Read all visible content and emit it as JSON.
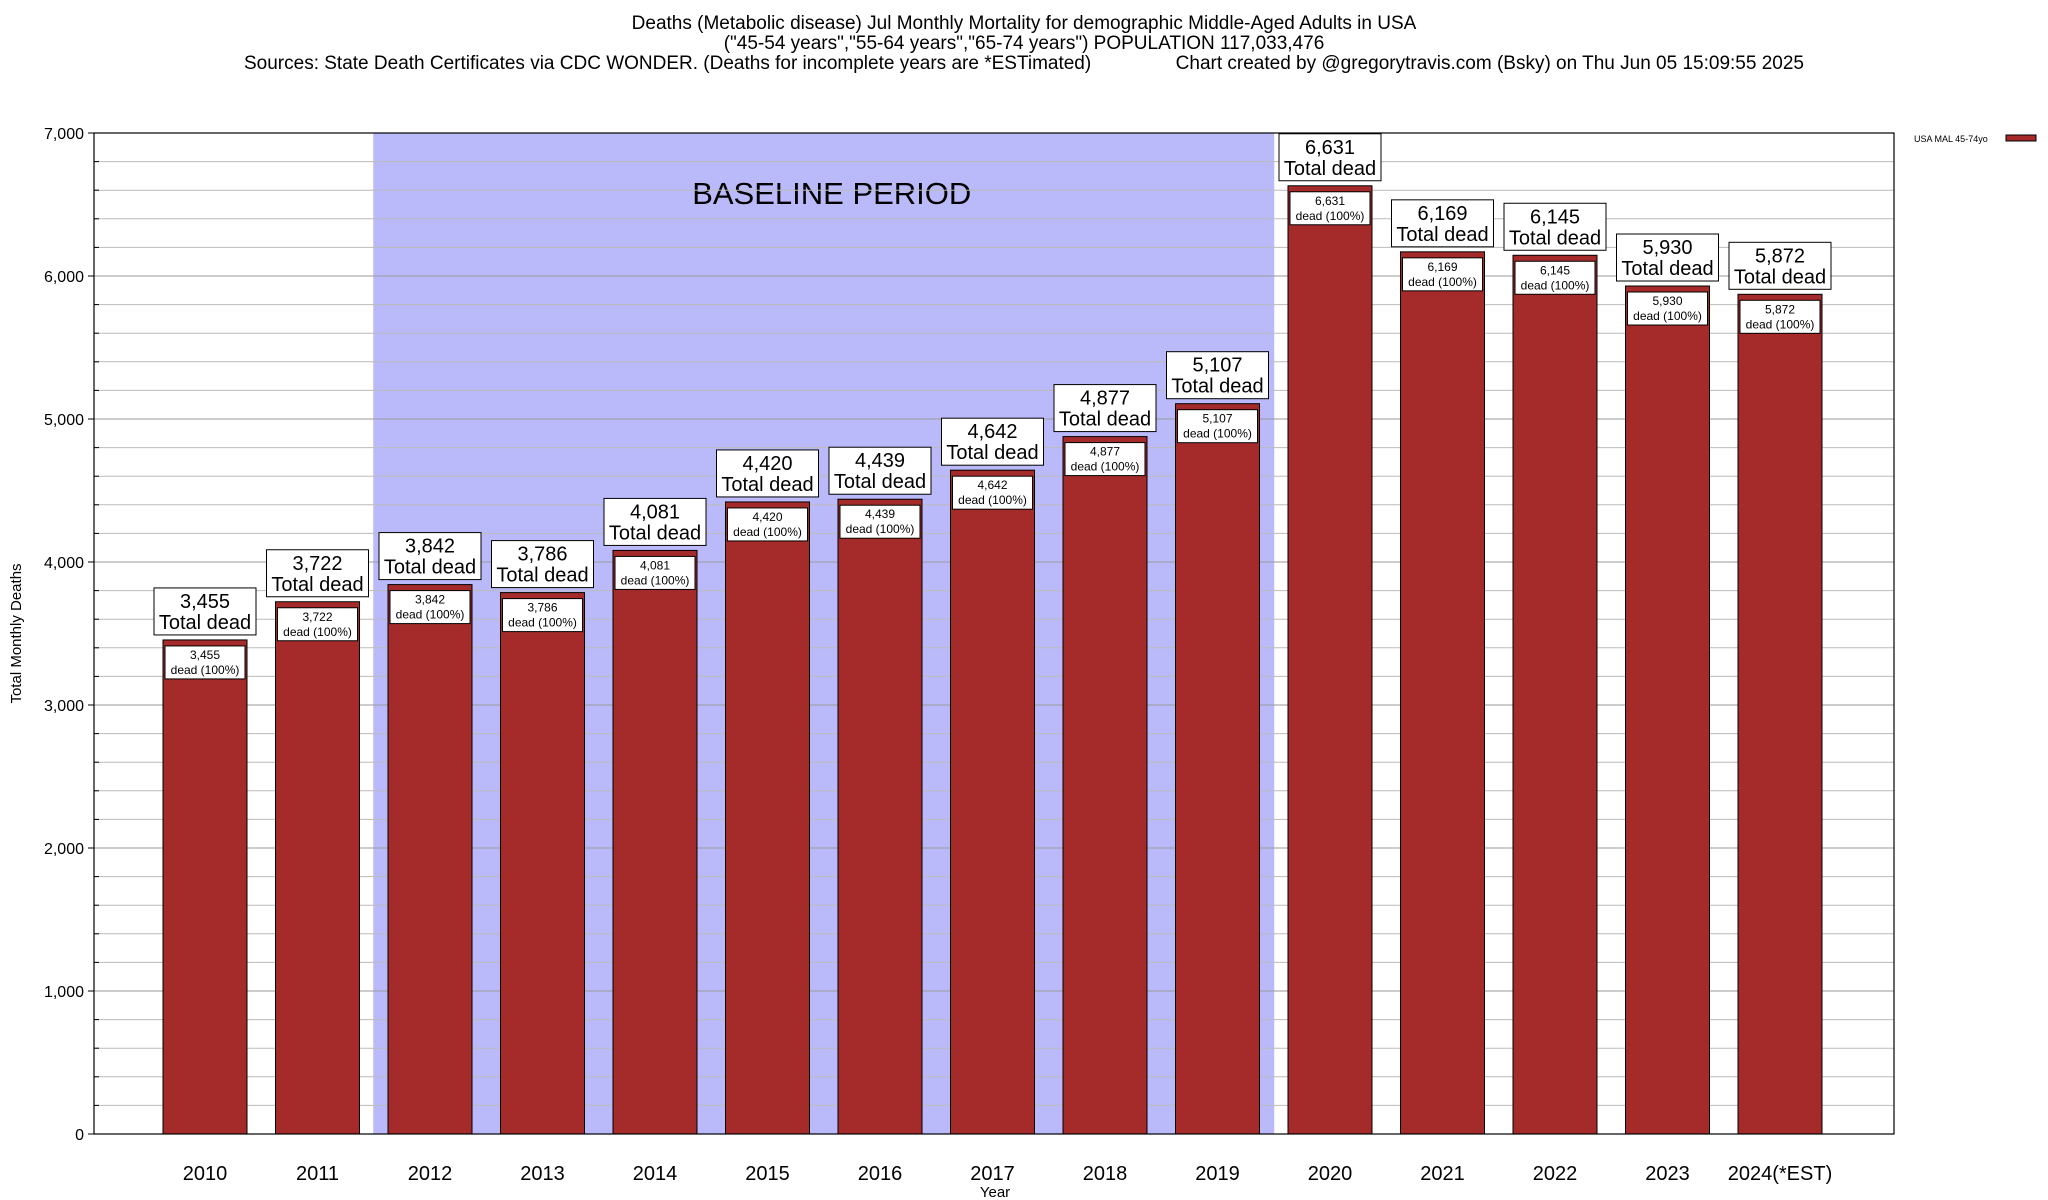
{
  "header": {
    "title_line1": "Deaths (Metabolic disease) Jul Monthly Mortality for demographic Middle-Aged Adults in USA",
    "title_line2": "(\"45-54 years\",\"55-64 years\",\"65-74 years\") POPULATION 117,033,476",
    "title_line3": "Sources: State Death Certificates via CDC WONDER. (Deaths for incomplete years are *ESTimated)                Chart created by @gregorytravis.com (Bsky) on Thu Jun 05 15:09:55 2025"
  },
  "colors": {
    "bar": "#a52a2a",
    "baseline_shade": "#babafa",
    "grid": "#bbbbbb"
  },
  "chart_data": {
    "type": "bar",
    "title": "Deaths (Metabolic disease) Jul Monthly Mortality for demographic Middle-Aged Adults in USA",
    "xlabel": "Year",
    "ylabel": "Total Monthly Deaths",
    "ylim": [
      0,
      7000
    ],
    "yticks": [
      0,
      1000,
      2000,
      3000,
      4000,
      5000,
      6000,
      7000
    ],
    "ytick_labels": [
      "0",
      "1,000",
      "2,000",
      "3,000",
      "4,000",
      "5,000",
      "6,000",
      "7,000"
    ],
    "grid": true,
    "legend": {
      "position": "top-right",
      "entries": [
        "USA MAL 45-74yo"
      ]
    },
    "baseline": {
      "label": "BASELINE PERIOD",
      "start": "2012",
      "end": "2019"
    },
    "categories": [
      "2010",
      "2011",
      "2012",
      "2013",
      "2014",
      "2015",
      "2016",
      "2017",
      "2018",
      "2019",
      "2020",
      "2021",
      "2022",
      "2023",
      "2024(*EST)"
    ],
    "series": [
      {
        "name": "USA MAL 45-74yo",
        "values": [
          3455,
          3722,
          3842,
          3786,
          4081,
          4420,
          4439,
          4642,
          4877,
          5107,
          6631,
          6169,
          6145,
          5930,
          5872
        ]
      }
    ],
    "total_labels": [
      "3,455",
      "3,722",
      "3,842",
      "3,786",
      "4,081",
      "4,420",
      "4,439",
      "4,642",
      "4,877",
      "5,107",
      "6,631",
      "6,169",
      "6,145",
      "5,930",
      "5,872"
    ],
    "total_suffix": "Total dead",
    "inner_suffix": "dead (100%)"
  }
}
